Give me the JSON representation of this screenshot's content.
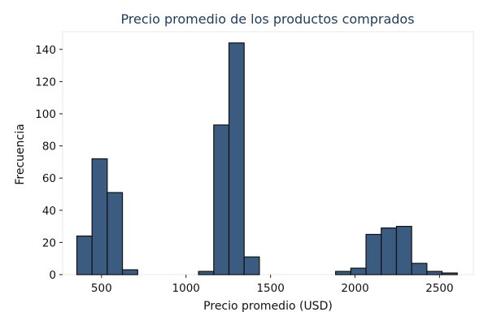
{
  "colors": {
    "bar_fill": "#3b5b80",
    "bar_stroke": "#111111",
    "title": "#1f3b5a",
    "frame": "#e8e8e8"
  },
  "chart_data": {
    "type": "bar",
    "title": "Precio promedio de los productos comprados",
    "xlabel": "Precio promedio (USD)",
    "ylabel": "Frecuencia",
    "xlim": [
      270,
      2700
    ],
    "ylim": [
      0,
      151
    ],
    "xticks": [
      500,
      1000,
      1500,
      2000,
      2500
    ],
    "yticks": [
      0,
      20,
      40,
      60,
      80,
      100,
      120,
      140
    ],
    "grid": false,
    "bins": [
      {
        "start": 354,
        "end": 444,
        "count": 24
      },
      {
        "start": 444,
        "end": 534,
        "count": 72
      },
      {
        "start": 534,
        "end": 624,
        "count": 51
      },
      {
        "start": 624,
        "end": 714,
        "count": 3
      },
      {
        "start": 1074,
        "end": 1164,
        "count": 2
      },
      {
        "start": 1164,
        "end": 1254,
        "count": 93
      },
      {
        "start": 1254,
        "end": 1344,
        "count": 144
      },
      {
        "start": 1344,
        "end": 1434,
        "count": 11
      },
      {
        "start": 1885,
        "end": 1975,
        "count": 2
      },
      {
        "start": 1975,
        "end": 2065,
        "count": 4
      },
      {
        "start": 2065,
        "end": 2155,
        "count": 25
      },
      {
        "start": 2155,
        "end": 2245,
        "count": 29
      },
      {
        "start": 2245,
        "end": 2335,
        "count": 30
      },
      {
        "start": 2335,
        "end": 2425,
        "count": 7
      },
      {
        "start": 2425,
        "end": 2515,
        "count": 2
      },
      {
        "start": 2515,
        "end": 2605,
        "count": 1
      }
    ]
  }
}
